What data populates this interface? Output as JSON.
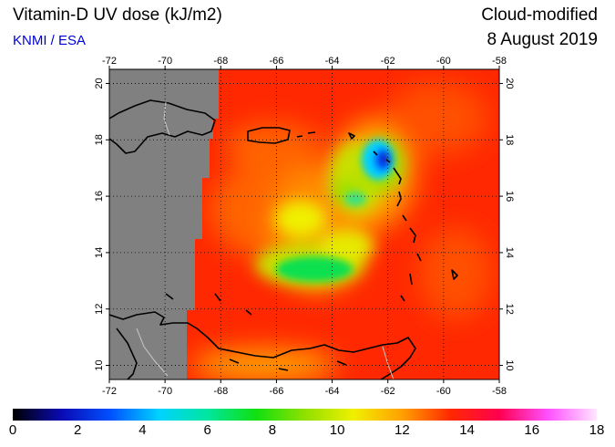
{
  "header": {
    "title": "Vitamin-D UV dose (kJ/m2)",
    "source": "KNMI / ESA",
    "product": "Cloud-modified",
    "date": "8 August 2019"
  },
  "map": {
    "lon_range": [
      -72,
      -58
    ],
    "lat_range": [
      9.5,
      20.5
    ],
    "lon_ticks": [
      "-72",
      "-70",
      "-68",
      "-66",
      "-64",
      "-62",
      "-60",
      "-58"
    ],
    "lat_ticks": [
      "10",
      "12",
      "14",
      "16",
      "18",
      "20"
    ],
    "no_data_color": "#808080",
    "coastline_color": "#000000",
    "border_color": "#c8c8c8"
  },
  "colorbar": {
    "range": [
      0,
      18
    ],
    "labels": [
      "0",
      "2",
      "4",
      "6",
      "8",
      "10",
      "12",
      "14",
      "16",
      "18"
    ],
    "colors": [
      "#000000",
      "#0a0ab4",
      "#0050ff",
      "#00d2ff",
      "#00e6a0",
      "#10e010",
      "#90e000",
      "#f0f000",
      "#ffa000",
      "#ff2800",
      "#ff0050",
      "#ff50ff",
      "#ffe6ff"
    ]
  }
}
